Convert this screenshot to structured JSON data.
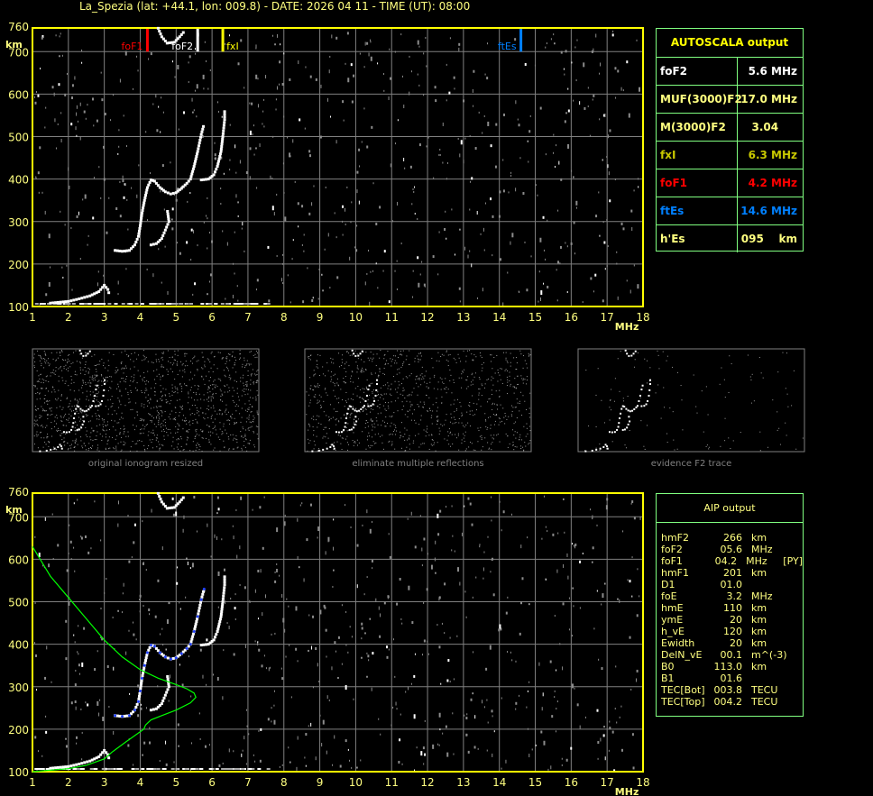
{
  "title": "La_Spezia (lat: +44.1, lon: 009.8) - DATE: 2026 04 11 - TIME (UT): 08:00",
  "chart_data": {
    "type": "scatter",
    "xlabel": "MHz",
    "ylabel": "km",
    "xlim": [
      1,
      18
    ],
    "ylim": [
      100,
      760
    ],
    "x_ticks": [
      "1",
      "2",
      "3",
      "4",
      "5",
      "6",
      "7",
      "8",
      "9",
      "10",
      "11",
      "12",
      "13",
      "14",
      "15",
      "16",
      "17",
      "18"
    ],
    "y_ticks": [
      "100",
      "200",
      "300",
      "400",
      "500",
      "600",
      "700",
      "760"
    ],
    "grid": true,
    "markers": [
      {
        "label": "foF1",
        "freq": 4.2,
        "color": "#ff0000",
        "label_side": "left"
      },
      {
        "label": "foF2",
        "freq": 5.6,
        "color": "#ffffff",
        "label_side": "left"
      },
      {
        "label": "fxI",
        "freq": 6.3,
        "color": "#ffff00",
        "label_side": "right"
      },
      {
        "label": "ftEs",
        "freq": 14.6,
        "color": "#0080ff",
        "label_side": "left"
      }
    ],
    "ordinary_trace": [
      [
        3.3,
        232
      ],
      [
        3.5,
        230
      ],
      [
        3.7,
        232
      ],
      [
        3.85,
        245
      ],
      [
        3.95,
        265
      ],
      [
        4.0,
        290
      ],
      [
        4.05,
        320
      ],
      [
        4.12,
        350
      ],
      [
        4.2,
        380
      ],
      [
        4.3,
        398
      ],
      [
        4.4,
        395
      ],
      [
        4.55,
        380
      ],
      [
        4.7,
        370
      ],
      [
        4.85,
        365
      ],
      [
        5.0,
        368
      ],
      [
        5.15,
        378
      ],
      [
        5.3,
        390
      ],
      [
        5.4,
        400
      ],
      [
        5.5,
        430
      ],
      [
        5.6,
        465
      ],
      [
        5.7,
        505
      ],
      [
        5.78,
        530
      ]
    ],
    "extraordinary_trace": [
      [
        4.3,
        245
      ],
      [
        4.45,
        248
      ],
      [
        4.6,
        260
      ],
      [
        4.7,
        280
      ],
      [
        4.8,
        300
      ],
      [
        4.75,
        330
      ],
      [
        5.7,
        398
      ],
      [
        5.9,
        400
      ],
      [
        6.05,
        410
      ],
      [
        6.15,
        430
      ],
      [
        6.25,
        465
      ],
      [
        6.3,
        500
      ],
      [
        6.35,
        540
      ],
      [
        6.35,
        565
      ]
    ],
    "upper_trace": [
      [
        4.5,
        755
      ],
      [
        4.6,
        735
      ],
      [
        4.75,
        720
      ],
      [
        4.95,
        722
      ],
      [
        5.1,
        735
      ],
      [
        5.25,
        750
      ]
    ],
    "low_trace": [
      [
        1.5,
        108
      ],
      [
        2.0,
        112
      ],
      [
        2.3,
        118
      ],
      [
        2.6,
        125
      ],
      [
        2.85,
        135
      ],
      [
        3.0,
        150
      ],
      [
        3.1,
        140
      ],
      [
        3.15,
        125
      ]
    ],
    "aip_profile": [
      [
        1,
        630
      ],
      [
        1.5,
        560
      ],
      [
        2,
        510
      ],
      [
        2.5,
        460
      ],
      [
        3,
        410
      ],
      [
        3.5,
        370
      ],
      [
        4,
        340
      ],
      [
        4.5,
        320
      ],
      [
        5,
        305
      ],
      [
        5.3,
        295
      ],
      [
        5.5,
        285
      ],
      [
        5.55,
        275
      ],
      [
        5.4,
        262
      ],
      [
        5,
        245
      ],
      [
        4.6,
        232
      ],
      [
        4.3,
        222
      ],
      [
        4.15,
        210
      ],
      [
        4.1,
        200
      ],
      [
        3.6,
        170
      ],
      [
        3.2,
        145
      ],
      [
        3.0,
        130
      ],
      [
        2.5,
        115
      ],
      [
        2,
        107
      ],
      [
        1,
        100
      ]
    ]
  },
  "thumbnails": [
    {
      "caption": "original ionogram resized"
    },
    {
      "caption": "eliminate multiple reflections"
    },
    {
      "caption": "evidence F2 trace"
    }
  ],
  "autoscala": {
    "title": "AUTOSCALA output",
    "rows": [
      {
        "k": "foF2",
        "v": "5.6 MHz",
        "color": "#ffffff"
      },
      {
        "k": "MUF(3000)F2",
        "v": "17.0 MHz",
        "color": "#ffff80"
      },
      {
        "k": "M(3000)F2",
        "v": "3.04     ",
        "color": "#ffff80"
      },
      {
        "k": "fxI",
        "v": "6.3 MHz",
        "color": "#c8c800"
      },
      {
        "k": "foF1",
        "v": "4.2 MHz",
        "color": "#ff0000"
      },
      {
        "k": "ftEs",
        "v": "14.6 MHz",
        "color": "#0080ff"
      },
      {
        "k": "h'Es",
        "v": "095    km",
        "color": "#ffff80"
      }
    ]
  },
  "aip": {
    "title": "AIP output",
    "rows": [
      [
        "hmF2",
        "266",
        "km",
        ""
      ],
      [
        "foF2",
        "05.6",
        "MHz",
        ""
      ],
      [
        "foF1",
        "04.2",
        "MHz",
        "[PY]"
      ],
      [
        "hmF1",
        "201",
        "km",
        ""
      ],
      [
        "D1",
        "01.0",
        "",
        ""
      ],
      [
        "foE",
        "3.2",
        "MHz",
        ""
      ],
      [
        "hmE",
        "110",
        "km",
        ""
      ],
      [
        "ymE",
        "20",
        "km",
        ""
      ],
      [
        "h_vE",
        "120",
        "km",
        ""
      ],
      [
        "Ewidth",
        "20",
        "km",
        ""
      ],
      [
        "DelN_vE",
        "00.1",
        "m^(-3)",
        ""
      ],
      [
        "B0",
        "113.0",
        "km",
        ""
      ],
      [
        "B1",
        "01.6",
        "",
        ""
      ],
      [
        "TEC[Bot]",
        "003.8",
        "TECU",
        ""
      ],
      [
        "TEC[Top]",
        "004.2",
        "TECU",
        ""
      ]
    ]
  }
}
